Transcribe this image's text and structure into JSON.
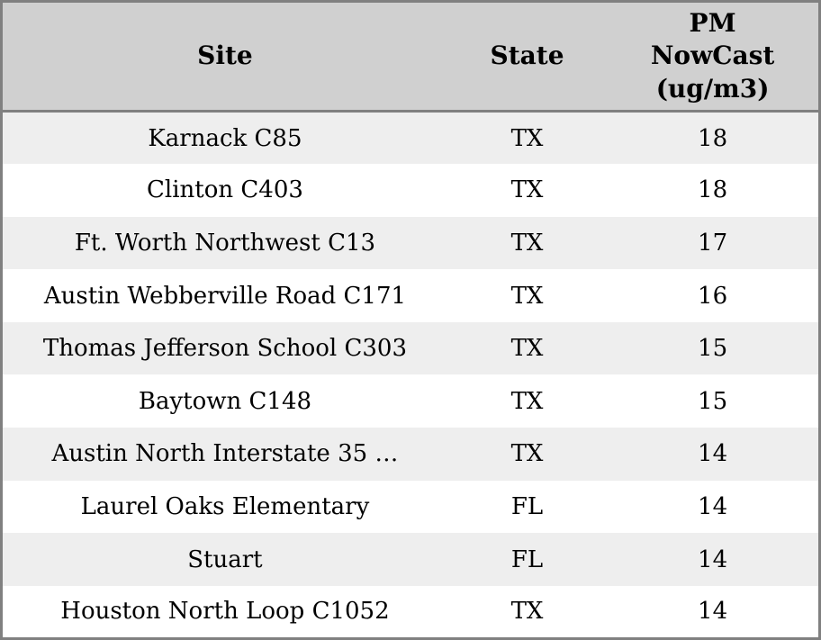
{
  "chart_data": {
    "type": "table",
    "columns": [
      {
        "key": "site",
        "label": "Site"
      },
      {
        "key": "state",
        "label": "State"
      },
      {
        "key": "pm_nowcast",
        "label": "PM NowCast (ug/m3)"
      }
    ],
    "rows": [
      {
        "site": "Karnack C85",
        "state": "TX",
        "pm_nowcast": "18"
      },
      {
        "site": "Clinton C403",
        "state": "TX",
        "pm_nowcast": "18"
      },
      {
        "site": "Ft. Worth Northwest C13",
        "state": "TX",
        "pm_nowcast": "17"
      },
      {
        "site": "Austin Webberville Road C171",
        "state": "TX",
        "pm_nowcast": "16"
      },
      {
        "site": "Thomas Jefferson School C303",
        "state": "TX",
        "pm_nowcast": "15"
      },
      {
        "site": "Baytown C148",
        "state": "TX",
        "pm_nowcast": "15"
      },
      {
        "site": "Austin North Interstate 35 …",
        "state": "TX",
        "pm_nowcast": "14"
      },
      {
        "site": "Laurel Oaks Elementary",
        "state": "FL",
        "pm_nowcast": "14"
      },
      {
        "site": "Stuart",
        "state": "FL",
        "pm_nowcast": "14"
      },
      {
        "site": "Houston North Loop C1052",
        "state": "TX",
        "pm_nowcast": "14"
      }
    ]
  },
  "colors": {
    "border_color": "#808080",
    "header_bg": "#d0d0d0",
    "row_alt_bg": "#eeeeee",
    "row_bg": "#ffffff",
    "text_color": "#000000"
  }
}
